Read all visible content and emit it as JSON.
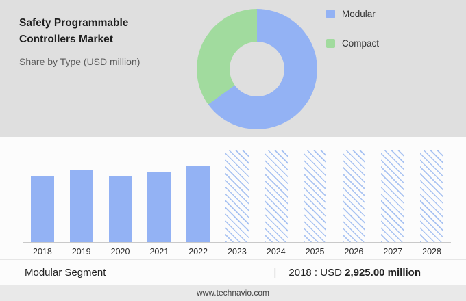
{
  "header": {
    "title_line1": "Safety Programmable",
    "title_line2": "Controllers Market",
    "subtitle": "Share by Type (USD million)"
  },
  "colors": {
    "modular_blue": "#93b2f4",
    "compact_green": "#a1db9e",
    "top_panel_bg": "#dfdfdf",
    "axis_line": "#c9c9c9"
  },
  "legend": {
    "items": [
      {
        "label": "Modular",
        "color": "#93b2f4"
      },
      {
        "label": "Compact",
        "color": "#a1db9e"
      }
    ]
  },
  "chart_data": [
    {
      "type": "pie",
      "donut": true,
      "title": "Share by Type (USD million)",
      "labels": [
        "Modular",
        "Compact"
      ],
      "values_percent": [
        65,
        35
      ],
      "colors": [
        "#93b2f4",
        "#a1db9e"
      ],
      "legend_position": "right"
    },
    {
      "type": "bar",
      "categories": [
        "2018",
        "2019",
        "2020",
        "2021",
        "2022",
        "2023",
        "2024",
        "2025",
        "2026",
        "2027",
        "2028"
      ],
      "series": [
        {
          "name": "Modular segment (USD million)",
          "values": [
            2925.0,
            3140,
            2920,
            3080,
            3300,
            null,
            null,
            null,
            null,
            null,
            null
          ]
        }
      ],
      "bar_heights_percent": [
        72,
        78,
        72,
        77,
        83,
        100,
        100,
        100,
        100,
        100,
        100
      ],
      "forecast_from": "2023",
      "bar_color": "#93b2f4",
      "forecast_pattern": "diagonal-hatch",
      "xlabel": "",
      "ylabel": "",
      "grid": false
    }
  ],
  "footer": {
    "segment_label": "Modular Segment",
    "separator": "|",
    "stat_prefix": "2018 : USD",
    "stat_value": "2,925.00 million"
  },
  "site_bar": {
    "text": "www.technavio.com"
  }
}
